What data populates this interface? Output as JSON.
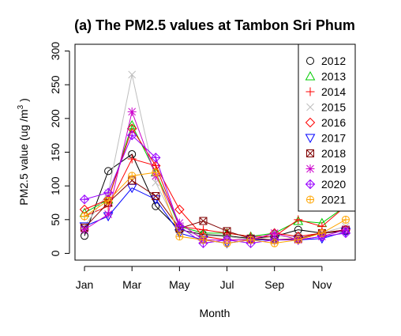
{
  "chart_data": {
    "type": "line",
    "title": "(a) The PM2.5 values at Tambon Sri Phum",
    "xlabel": "Month",
    "ylabel_main": "PM2.5 value (ug /m",
    "ylabel_sup": "3",
    "ylabel_end": " )",
    "x": [
      1,
      2,
      3,
      4,
      5,
      6,
      7,
      8,
      9,
      10,
      11,
      12
    ],
    "xticks": [
      1,
      3,
      5,
      7,
      9,
      11
    ],
    "xtick_labels": [
      "Jan",
      "Mar",
      "May",
      "Jul",
      "Sep",
      "Nov"
    ],
    "xlim": [
      0.6,
      12.4
    ],
    "ylim": [
      -10,
      310
    ],
    "yticks": [
      0,
      50,
      100,
      150,
      200,
      250,
      300
    ],
    "ytick_labels": [
      "0",
      "50",
      "100",
      "150",
      "200",
      "250",
      "300"
    ],
    "legend_position": "top-right",
    "series": [
      {
        "name": "2012",
        "color": "#000000",
        "marker": "circle",
        "values": [
          26,
          122,
          147,
          70,
          35,
          28,
          26,
          22,
          25,
          35,
          30,
          33
        ]
      },
      {
        "name": "2013",
        "color": "#00cc00",
        "marker": "triangle-up",
        "values": [
          60,
          80,
          190,
          120,
          40,
          30,
          30,
          25,
          30,
          48,
          45,
          70
        ]
      },
      {
        "name": "2014",
        "color": "#ff0000",
        "marker": "plus",
        "values": [
          55,
          70,
          140,
          130,
          40,
          35,
          30,
          25,
          25,
          50,
          40,
          70
        ]
      },
      {
        "name": "2015",
        "color": "#bebebe",
        "marker": "cross",
        "values": [
          40,
          90,
          265,
          105,
          35,
          25,
          25,
          20,
          25,
          25,
          30,
          40
        ]
      },
      {
        "name": "2016",
        "color": "#ff0000",
        "marker": "diamond",
        "values": [
          65,
          80,
          185,
          130,
          65,
          25,
          20,
          20,
          30,
          25,
          30,
          35
        ]
      },
      {
        "name": "2017",
        "color": "#0000ff",
        "marker": "triangle-down",
        "values": [
          40,
          55,
          97,
          80,
          30,
          20,
          15,
          20,
          20,
          20,
          22,
          32
        ]
      },
      {
        "name": "2018",
        "color": "#800000",
        "marker": "square-x",
        "values": [
          38,
          75,
          108,
          85,
          37,
          48,
          33,
          22,
          20,
          22,
          30,
          35
        ]
      },
      {
        "name": "2019",
        "color": "#cc00cc",
        "marker": "asterisk",
        "values": [
          35,
          58,
          210,
          115,
          45,
          20,
          20,
          20,
          30,
          20,
          25,
          35
        ]
      },
      {
        "name": "2020",
        "color": "#9900ff",
        "marker": "diamond-plus",
        "values": [
          80,
          90,
          175,
          142,
          40,
          15,
          20,
          15,
          20,
          20,
          25,
          30
        ]
      },
      {
        "name": "2021",
        "color": "#ffa500",
        "marker": "circle-plus",
        "values": [
          55,
          78,
          115,
          120,
          25,
          20,
          15,
          20,
          15,
          20,
          30,
          50
        ]
      }
    ]
  }
}
